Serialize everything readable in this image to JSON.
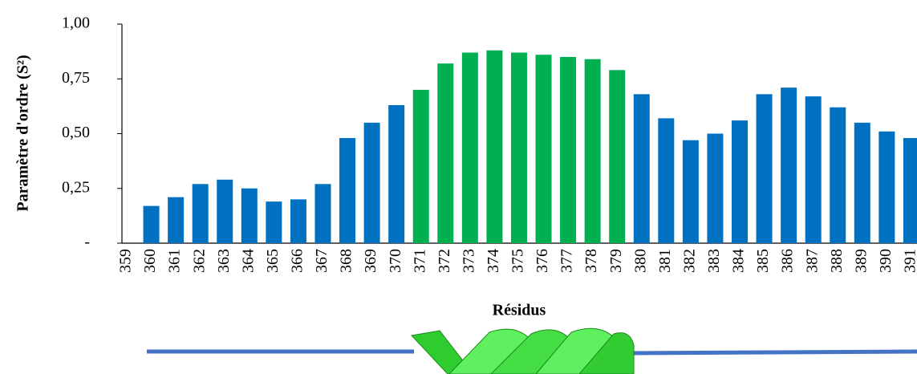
{
  "chart_data": {
    "type": "bar",
    "y_label": "Paramètre d'ordre (S²)",
    "x_label": "Résidus",
    "categories": [
      "359",
      "360",
      "361",
      "362",
      "363",
      "364",
      "365",
      "366",
      "367",
      "368",
      "369",
      "370",
      "371",
      "372",
      "373",
      "374",
      "375",
      "376",
      "377",
      "378",
      "379",
      "380",
      "381",
      "382",
      "383",
      "384",
      "385",
      "386",
      "387",
      "388",
      "389",
      "390",
      "391"
    ],
    "values": [
      null,
      0.17,
      0.21,
      0.27,
      0.29,
      0.25,
      0.19,
      0.2,
      0.27,
      0.48,
      0.55,
      0.63,
      0.7,
      0.82,
      0.87,
      0.88,
      0.87,
      0.86,
      0.85,
      0.84,
      0.79,
      0.68,
      0.57,
      0.47,
      0.5,
      0.56,
      0.68,
      0.71,
      0.67,
      0.62,
      0.55,
      0.51,
      0.48
    ],
    "colors": [
      "#0070c0",
      "#0070c0",
      "#0070c0",
      "#0070c0",
      "#0070c0",
      "#0070c0",
      "#0070c0",
      "#0070c0",
      "#0070c0",
      "#0070c0",
      "#0070c0",
      "#0070c0",
      "#00b050",
      "#00b050",
      "#00b050",
      "#00b050",
      "#00b050",
      "#00b050",
      "#00b050",
      "#00b050",
      "#00b050",
      "#0070c0",
      "#0070c0",
      "#0070c0",
      "#0070c0",
      "#0070c0",
      "#0070c0",
      "#0070c0",
      "#0070c0",
      "#0070c0",
      "#0070c0",
      "#0070c0",
      "#0070c0"
    ],
    "ylim": [
      0,
      1
    ],
    "yticks": [
      {
        "value": 0,
        "label": "-"
      },
      {
        "value": 0.25,
        "label": "0,25"
      },
      {
        "value": 0.5,
        "label": "0,50"
      },
      {
        "value": 0.75,
        "label": "0,75"
      },
      {
        "value": 1,
        "label": "1,00"
      }
    ]
  }
}
